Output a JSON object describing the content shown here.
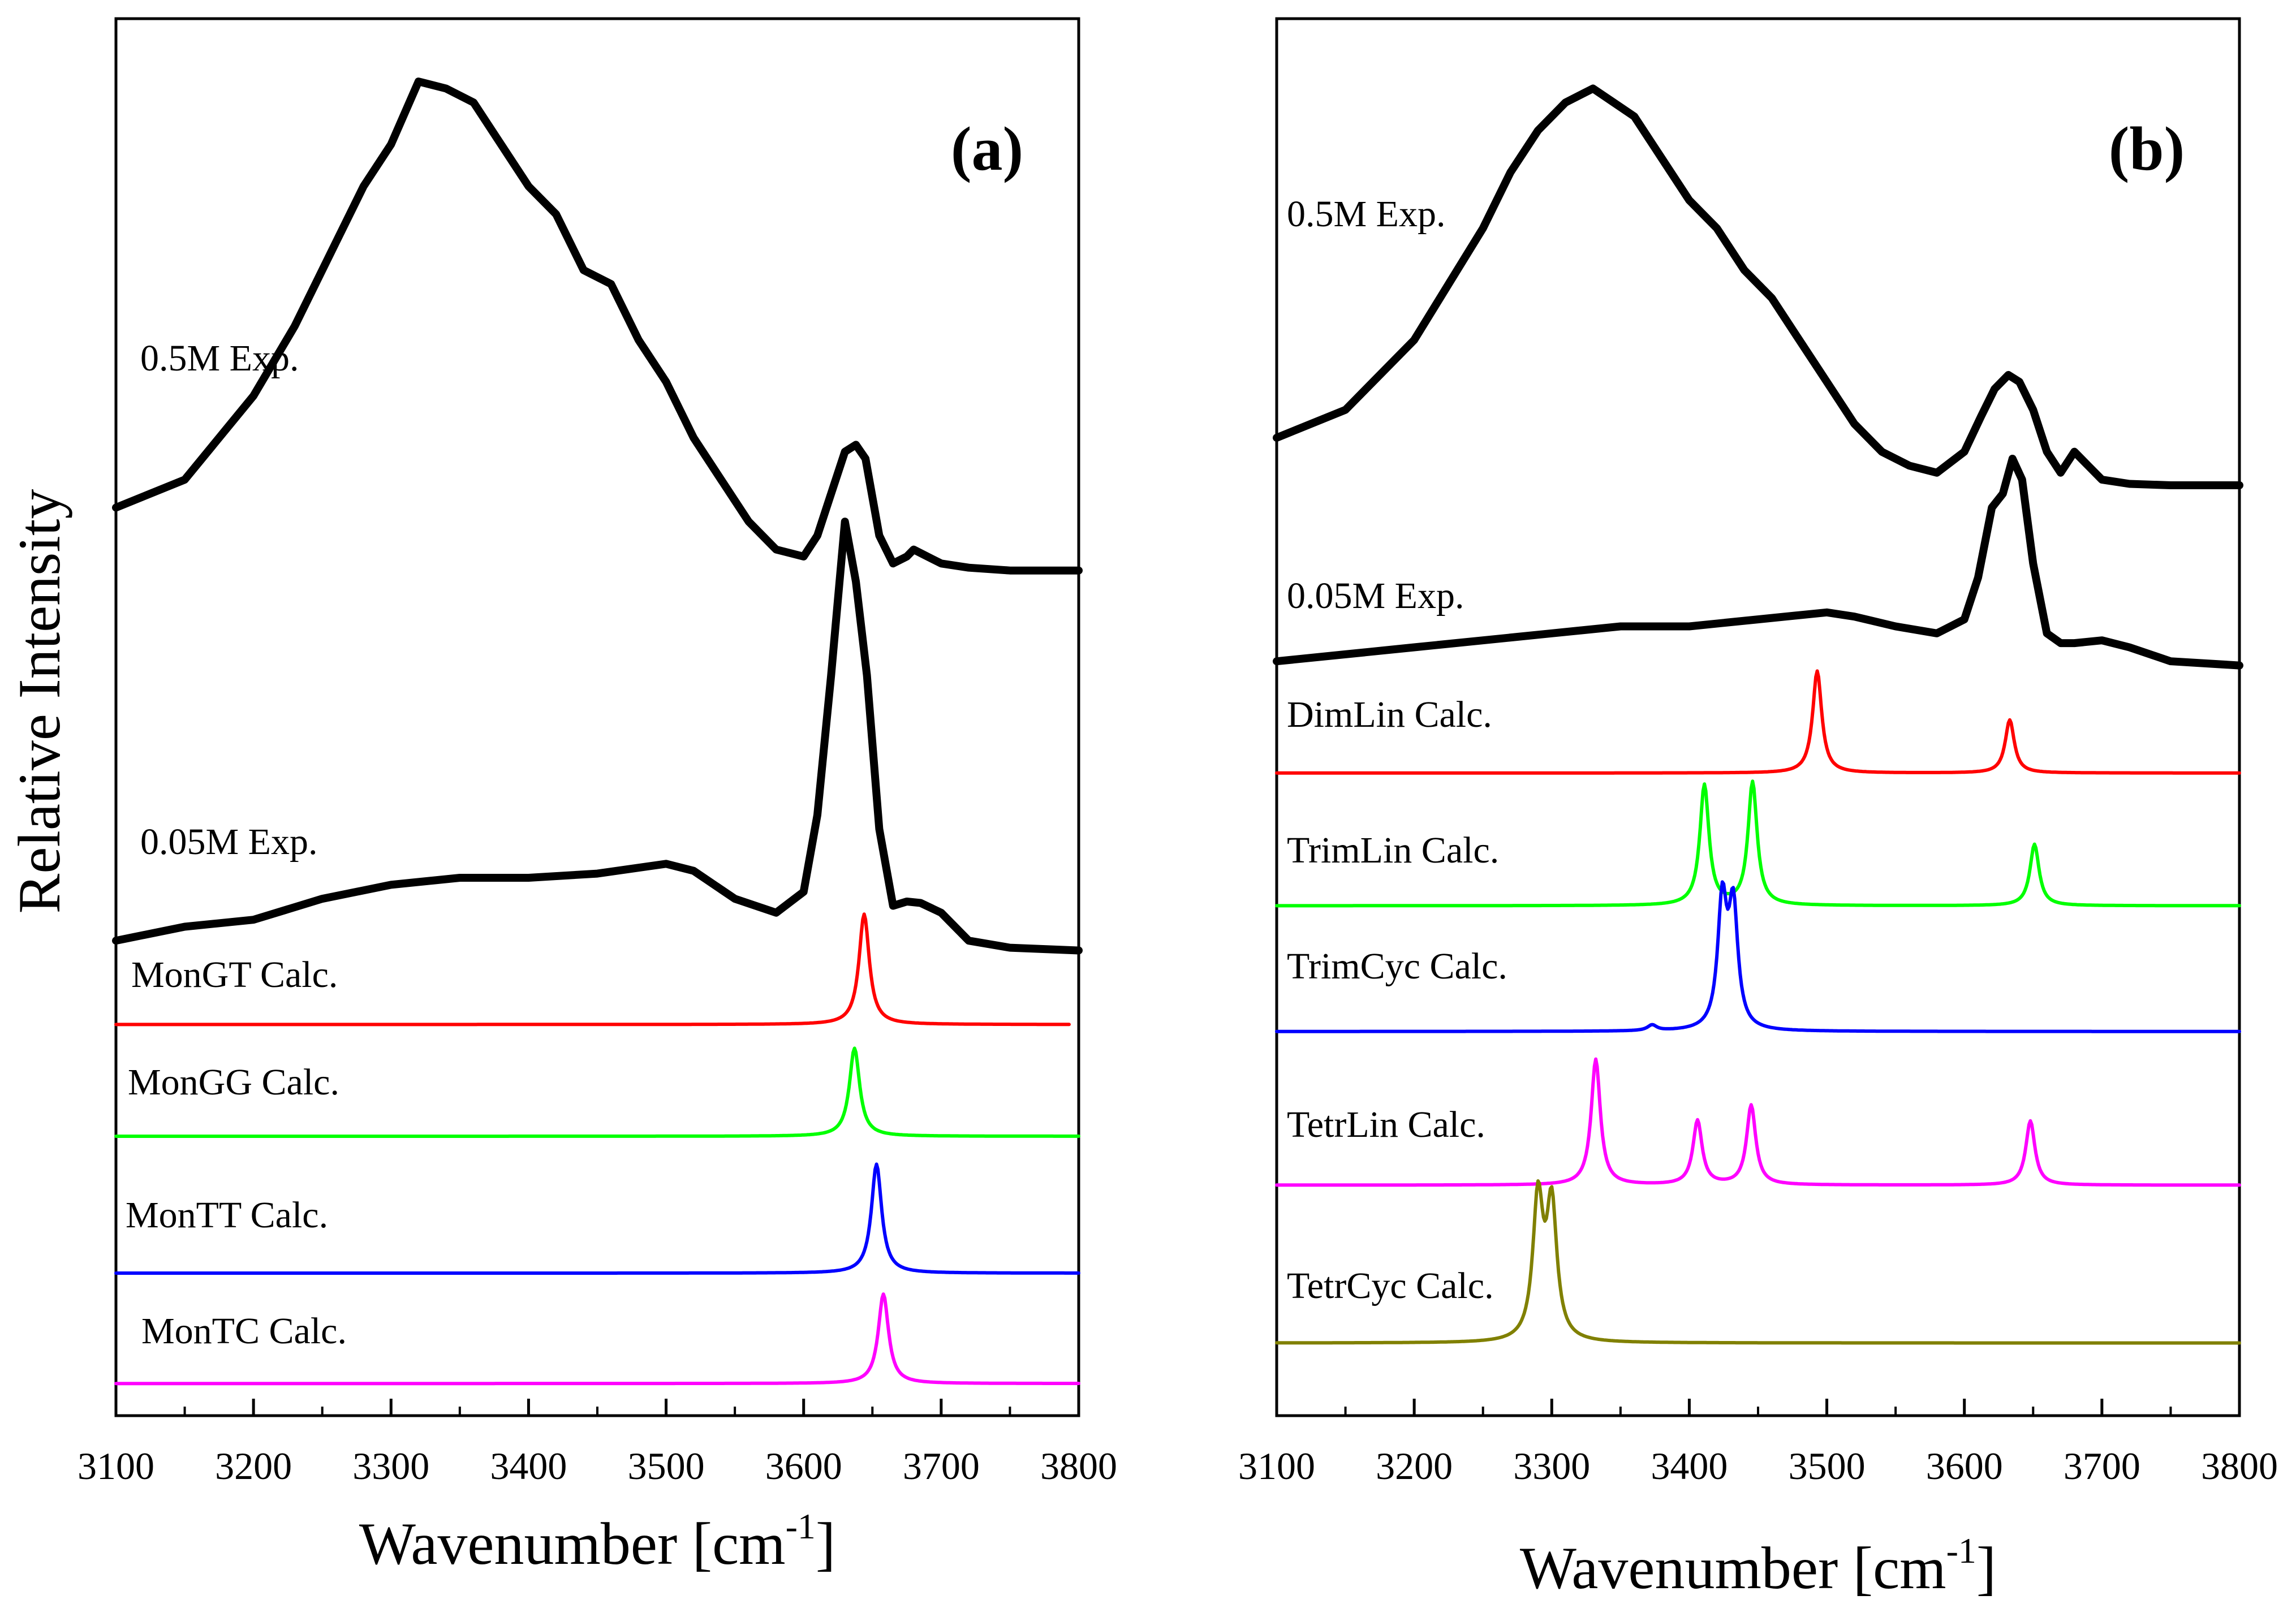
{
  "ylabel": "Relative Intensity",
  "chart_data": [
    {
      "type": "line",
      "panel_label": "(a)",
      "xlabel": "Wavenumber [cm",
      "xlabel_sup": "-1",
      "xlabel_end": "]",
      "xlim": [
        3100,
        3800
      ],
      "xticks": [
        "3100",
        "3200",
        "3300",
        "3400",
        "3500",
        "3600",
        "3700",
        "3800"
      ],
      "series": [
        {
          "name": "0.5M Exp.",
          "color": "#000000",
          "baseline": 0.395,
          "x": [
            3100,
            3150,
            3200,
            3230,
            3260,
            3280,
            3300,
            3320,
            3340,
            3360,
            3380,
            3400,
            3420,
            3440,
            3460,
            3480,
            3500,
            3520,
            3540,
            3560,
            3580,
            3600,
            3610,
            3620,
            3630,
            3638,
            3645,
            3655,
            3665,
            3675,
            3680,
            3690,
            3700,
            3720,
            3750,
            3800
          ],
          "y": [
            0.35,
            0.33,
            0.27,
            0.22,
            0.16,
            0.12,
            0.09,
            0.045,
            0.05,
            0.06,
            0.09,
            0.12,
            0.14,
            0.18,
            0.19,
            0.23,
            0.26,
            0.3,
            0.33,
            0.36,
            0.38,
            0.385,
            0.37,
            0.34,
            0.31,
            0.305,
            0.315,
            0.37,
            0.39,
            0.385,
            0.38,
            0.385,
            0.39,
            0.393,
            0.395,
            0.395
          ]
        },
        {
          "name": "0.05M Exp.",
          "color": "#000000",
          "baseline": 0.665,
          "x": [
            3100,
            3150,
            3200,
            3250,
            3300,
            3350,
            3400,
            3450,
            3500,
            3520,
            3550,
            3580,
            3600,
            3610,
            3620,
            3630,
            3638,
            3646,
            3655,
            3665,
            3675,
            3685,
            3700,
            3720,
            3750,
            3800
          ],
          "y": [
            0.66,
            0.65,
            0.645,
            0.63,
            0.62,
            0.615,
            0.615,
            0.612,
            0.605,
            0.61,
            0.63,
            0.64,
            0.625,
            0.57,
            0.47,
            0.36,
            0.403,
            0.47,
            0.58,
            0.635,
            0.632,
            0.633,
            0.64,
            0.66,
            0.665,
            0.667
          ]
        },
        {
          "name": "MonGT Calc.",
          "color": "#ff0000",
          "baseline": 0.72,
          "x_end": 3793,
          "peaks": [
            {
              "x": 3644,
              "h": 0.079,
              "w": 4.5
            }
          ]
        },
        {
          "name": "MonGG Calc.",
          "color": "#00ff00",
          "baseline": 0.8,
          "peaks": [
            {
              "x": 3637,
              "h": 0.063,
              "w": 4.5
            }
          ]
        },
        {
          "name": "MonTT Calc.",
          "color": "#0000ff",
          "baseline": 0.898,
          "peaks": [
            {
              "x": 3653,
              "h": 0.078,
              "w": 4.5
            }
          ]
        },
        {
          "name": "MonTC Calc.",
          "color": "#ff00ff",
          "baseline": 0.977,
          "peaks": [
            {
              "x": 3658,
              "h": 0.064,
              "w": 4.5
            }
          ]
        }
      ]
    },
    {
      "type": "line",
      "panel_label": "(b)",
      "xlabel": "Wavenumber [cm",
      "xlabel_sup": "-1",
      "xlabel_end": "]",
      "xlim": [
        3100,
        3800
      ],
      "xticks": [
        "3100",
        "3200",
        "3300",
        "3400",
        "3500",
        "3600",
        "3700",
        "3800"
      ],
      "series": [
        {
          "name": "0.5M Exp.",
          "color": "#000000",
          "baseline": 0.333,
          "x": [
            3100,
            3150,
            3200,
            3250,
            3270,
            3290,
            3310,
            3330,
            3345,
            3360,
            3380,
            3400,
            3420,
            3440,
            3460,
            3480,
            3500,
            3520,
            3540,
            3560,
            3580,
            3600,
            3612,
            3622,
            3632,
            3640,
            3650,
            3660,
            3670,
            3680,
            3690,
            3700,
            3720,
            3750,
            3800
          ],
          "y": [
            0.3,
            0.28,
            0.23,
            0.15,
            0.11,
            0.08,
            0.06,
            0.05,
            0.06,
            0.07,
            0.1,
            0.13,
            0.15,
            0.18,
            0.2,
            0.23,
            0.26,
            0.29,
            0.31,
            0.32,
            0.325,
            0.31,
            0.285,
            0.265,
            0.255,
            0.26,
            0.28,
            0.31,
            0.325,
            0.31,
            0.32,
            0.33,
            0.333,
            0.334,
            0.334
          ]
        },
        {
          "name": "0.05M Exp.",
          "color": "#000000",
          "baseline": 0.463,
          "x": [
            3100,
            3150,
            3200,
            3250,
            3300,
            3350,
            3400,
            3450,
            3500,
            3520,
            3550,
            3580,
            3600,
            3610,
            3620,
            3628,
            3635,
            3642,
            3650,
            3660,
            3670,
            3680,
            3700,
            3720,
            3750,
            3800
          ],
          "y": [
            0.46,
            0.455,
            0.45,
            0.445,
            0.44,
            0.435,
            0.435,
            0.43,
            0.425,
            0.428,
            0.435,
            0.44,
            0.43,
            0.4,
            0.35,
            0.34,
            0.315,
            0.33,
            0.39,
            0.44,
            0.447,
            0.447,
            0.445,
            0.45,
            0.46,
            0.463
          ]
        },
        {
          "name": "DimLin Calc.",
          "color": "#ff0000",
          "baseline": 0.54,
          "peaks": [
            {
              "x": 3493,
              "h": 0.073,
              "w": 4
            },
            {
              "x": 3633,
              "h": 0.038,
              "w": 4
            }
          ]
        },
        {
          "name": "TrimLin Calc.",
          "color": "#00ff00",
          "baseline": 0.635,
          "peaks": [
            {
              "x": 3411,
              "h": 0.086,
              "w": 4
            },
            {
              "x": 3446,
              "h": 0.088,
              "w": 4
            },
            {
              "x": 3651,
              "h": 0.044,
              "w": 4
            }
          ]
        },
        {
          "name": "TrimCyc Calc.",
          "color": "#0000ff",
          "baseline": 0.725,
          "peaks": [
            {
              "x": 3373,
              "h": 0.004,
              "w": 4
            },
            {
              "x": 3424,
              "h": 0.09,
              "w": 4
            },
            {
              "x": 3432,
              "h": 0.085,
              "w": 4
            }
          ]
        },
        {
          "name": "TetrLin Calc.",
          "color": "#ff00ff",
          "baseline": 0.835,
          "peaks": [
            {
              "x": 3332,
              "h": 0.09,
              "w": 4
            },
            {
              "x": 3406,
              "h": 0.046,
              "w": 4
            },
            {
              "x": 3445,
              "h": 0.057,
              "w": 4
            },
            {
              "x": 3648,
              "h": 0.046,
              "w": 4
            }
          ]
        },
        {
          "name": "TetrCyc Calc.",
          "color": "#808000",
          "baseline": 0.948,
          "peaks": [
            {
              "x": 3290,
              "h": 0.1,
              "w": 4.5
            },
            {
              "x": 3300,
              "h": 0.095,
              "w": 4.5
            }
          ]
        }
      ]
    }
  ]
}
